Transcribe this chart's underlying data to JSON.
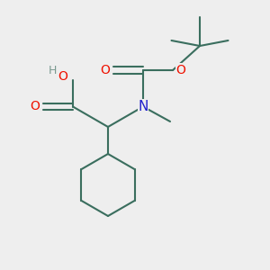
{
  "background_color": "#eeeeee",
  "bond_color": "#3a6e5e",
  "bond_width": 1.5,
  "o_color": "#ee1100",
  "n_color": "#2020cc",
  "h_color": "#7a9a90",
  "figsize": [
    3.0,
    3.0
  ],
  "dpi": 100,
  "xlim": [
    0,
    10
  ],
  "ylim": [
    0,
    10
  ]
}
